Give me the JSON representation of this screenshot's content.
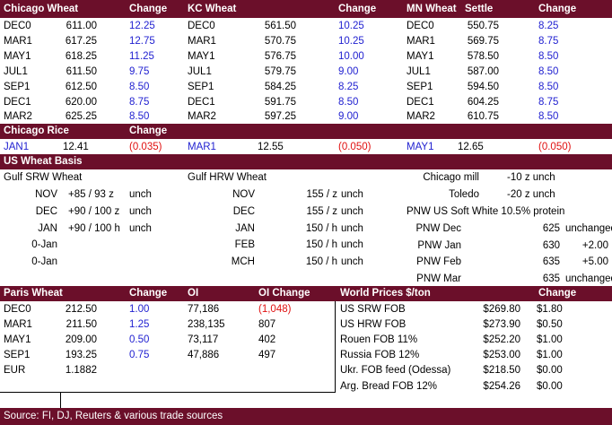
{
  "futures": {
    "headers": [
      "Chicago Wheat",
      "Change",
      "KC Wheat",
      "Change",
      "MN Wheat",
      "Settle",
      "Change"
    ],
    "chicago": [
      {
        "m": "DEC0",
        "v": "611.00",
        "c": "12.25"
      },
      {
        "m": "MAR1",
        "v": "617.25",
        "c": "12.75"
      },
      {
        "m": "MAY1",
        "v": "618.25",
        "c": "11.25"
      },
      {
        "m": "JUL1",
        "v": "611.50",
        "c": "9.75"
      },
      {
        "m": "SEP1",
        "v": "612.50",
        "c": "8.50"
      },
      {
        "m": "DEC1",
        "v": "620.00",
        "c": "8.75"
      },
      {
        "m": "MAR2",
        "v": "625.25",
        "c": "8.50"
      }
    ],
    "kc": [
      {
        "m": "DEC0",
        "v": "561.50",
        "c": "10.25"
      },
      {
        "m": "MAR1",
        "v": "570.75",
        "c": "10.25"
      },
      {
        "m": "MAY1",
        "v": "576.75",
        "c": "10.00"
      },
      {
        "m": "JUL1",
        "v": "579.75",
        "c": "9.00"
      },
      {
        "m": "SEP1",
        "v": "584.25",
        "c": "8.25"
      },
      {
        "m": "DEC1",
        "v": "591.75",
        "c": "8.50"
      },
      {
        "m": "MAR2",
        "v": "597.25",
        "c": "9.00"
      }
    ],
    "mn": [
      {
        "m": "DEC0",
        "v": "550.75",
        "c": "8.25"
      },
      {
        "m": "MAR1",
        "v": "569.75",
        "c": "8.75"
      },
      {
        "m": "MAY1",
        "v": "578.50",
        "c": "8.50"
      },
      {
        "m": "JUL1",
        "v": "587.00",
        "c": "8.50"
      },
      {
        "m": "SEP1",
        "v": "594.50",
        "c": "8.50"
      },
      {
        "m": "DEC1",
        "v": "604.25",
        "c": "8.75"
      },
      {
        "m": "MAR2",
        "v": "610.75",
        "c": "8.50"
      }
    ]
  },
  "rice": {
    "title": "Chicago Rice",
    "change_label": "Change",
    "items": [
      {
        "m": "JAN1",
        "v": "12.41",
        "c": "(0.035)"
      },
      {
        "m": "MAR1",
        "v": "12.55",
        "c": "(0.050)"
      },
      {
        "m": "MAY1",
        "v": "12.65",
        "c": "(0.050)"
      }
    ]
  },
  "basis": {
    "title": "US Wheat Basis",
    "gulf_srw_title": "Gulf SRW Wheat",
    "gulf_hrw_title": "Gulf HRW Wheat",
    "srw": [
      {
        "m": "NOV",
        "v": "+85 / 93 z",
        "u": "unch"
      },
      {
        "m": "DEC",
        "v": "+90 / 100 z",
        "u": "unch"
      },
      {
        "m": "JAN",
        "v": "+90 / 100 h",
        "u": "unch"
      },
      {
        "m": "0-Jan",
        "v": "",
        "u": ""
      },
      {
        "m": "0-Jan",
        "v": "",
        "u": ""
      }
    ],
    "hrw": [
      {
        "m": "NOV",
        "v": "155 / z",
        "u": "unch"
      },
      {
        "m": "DEC",
        "v": "155 / z",
        "u": "unch"
      },
      {
        "m": "JAN",
        "v": "150 / h",
        "u": "unch"
      },
      {
        "m": "FEB",
        "v": "150 / h",
        "u": "unch"
      },
      {
        "m": "MCH",
        "v": "150 / h",
        "u": "unch"
      }
    ],
    "right": [
      {
        "l": "Chicago mill",
        "v": "-10 z unch",
        "c": ""
      },
      {
        "l": "Toledo",
        "v": "-20 z unch",
        "c": ""
      },
      {
        "l": "PNW US Soft White 10.5% protein",
        "v": "",
        "c": ""
      },
      {
        "l": "PNW Dec",
        "v": "625",
        "c": "unchanged"
      },
      {
        "l": "PNW Jan",
        "v": "630",
        "c": "+2.00"
      },
      {
        "l": "PNW Feb",
        "v": "635",
        "c": "+5.00"
      },
      {
        "l": "PNW Mar",
        "v": "635",
        "c": "unchanged"
      }
    ]
  },
  "paris": {
    "headers": [
      "Paris Wheat",
      "Change",
      "OI",
      "OI Change"
    ],
    "rows": [
      {
        "m": "DEC0",
        "v": "212.50",
        "c": "1.00",
        "oi": "77,186",
        "oic": "(1,048)"
      },
      {
        "m": "MAR1",
        "v": "211.50",
        "c": "1.25",
        "oi": "238,135",
        "oic": "807"
      },
      {
        "m": "MAY1",
        "v": "209.00",
        "c": "0.50",
        "oi": "73,117",
        "oic": "402"
      },
      {
        "m": "SEP1",
        "v": "193.25",
        "c": "0.75",
        "oi": "47,886",
        "oic": "497"
      }
    ],
    "eur_label": "EUR",
    "eur_value": "1.1882"
  },
  "world": {
    "title": "World Prices $/ton",
    "change_label": "Change",
    "rows": [
      {
        "l": "US SRW FOB",
        "v": "$269.80",
        "c": "$1.80"
      },
      {
        "l": "US HRW FOB",
        "v": "$273.90",
        "c": "$0.50"
      },
      {
        "l": "Rouen FOB 11%",
        "v": "$252.20",
        "c": "$1.00"
      },
      {
        "l": "Russia FOB 12%",
        "v": "$253.00",
        "c": "$1.00"
      },
      {
        "l": "Ukr. FOB feed (Odessa)",
        "v": "$218.50",
        "c": "$0.00"
      },
      {
        "l": "Arg. Bread FOB 12%",
        "v": "$254.26",
        "c": "$0.00"
      }
    ]
  },
  "footer": "Source: FI, DJ, Reuters & various trade sources",
  "colors": {
    "band": "#6b0f2a",
    "blue": "#1f1fd0",
    "red": "#e01010"
  }
}
